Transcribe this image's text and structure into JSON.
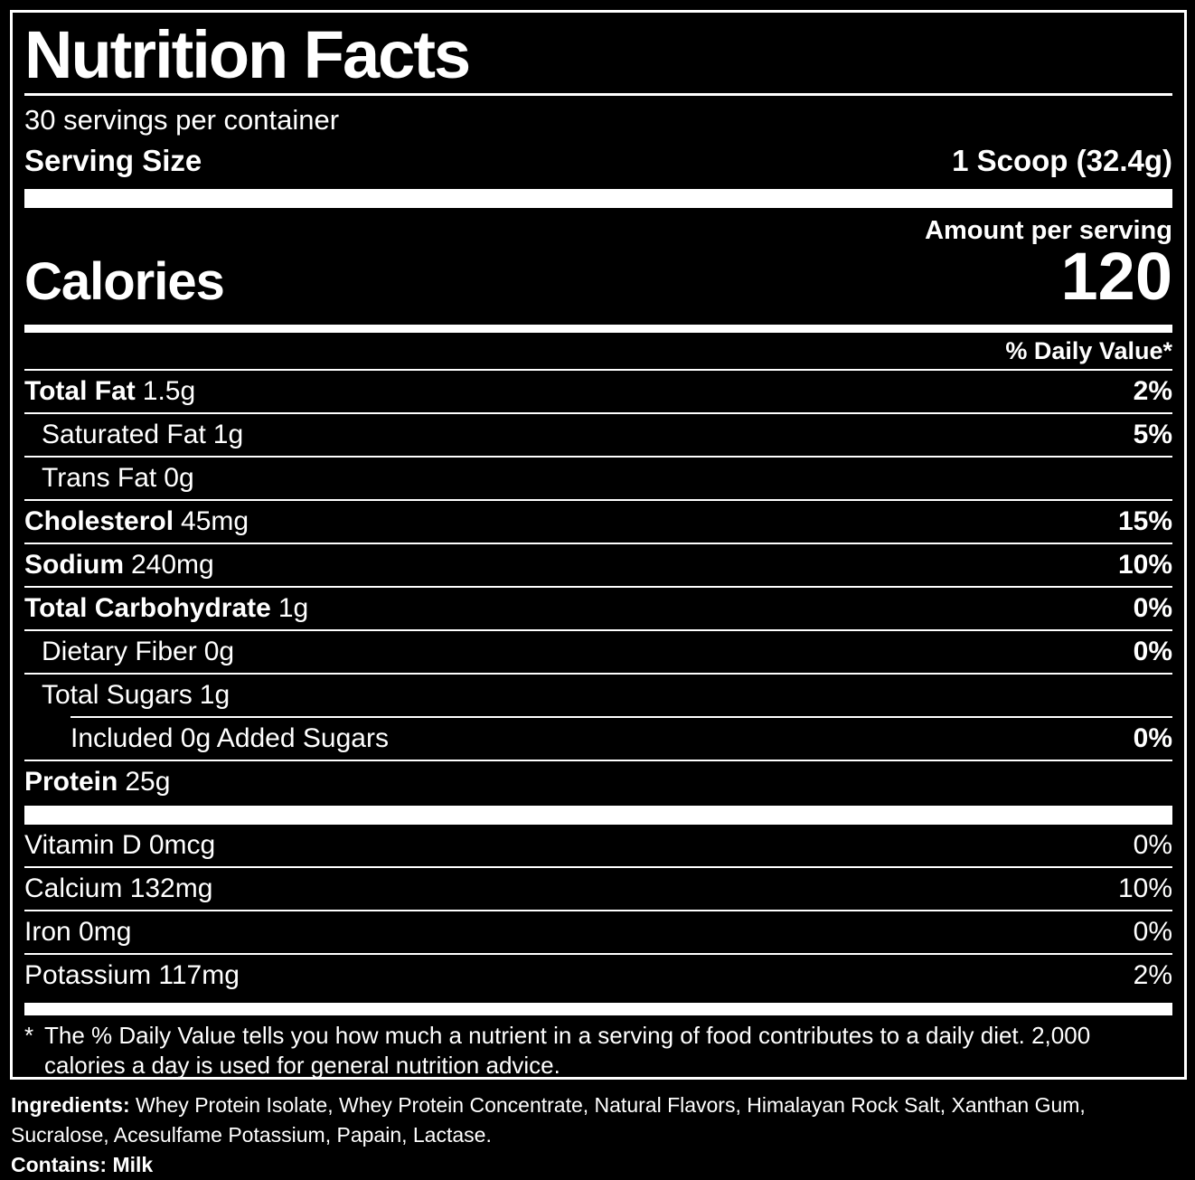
{
  "colors": {
    "background": "#000000",
    "text": "#ffffff"
  },
  "label": {
    "title": "Nutrition Facts",
    "servings_per_container": "30 servings per container",
    "serving_size_label": "Serving Size",
    "serving_size_value": "1 Scoop (32.4g)",
    "amount_per_serving": "Amount per serving",
    "calories_label": "Calories",
    "calories_value": "120",
    "daily_value_header": "% Daily Value*",
    "rows": [
      {
        "label": "Total Fat",
        "amount": "1.5g",
        "dv": "2%"
      },
      {
        "label": "Saturated Fat",
        "amount": "1g",
        "dv": "5%"
      },
      {
        "label": "Trans Fat",
        "amount": "0g",
        "dv": ""
      },
      {
        "label": "Cholesterol",
        "amount": "45mg",
        "dv": "15%"
      },
      {
        "label": "Sodium",
        "amount": "240mg",
        "dv": "10%"
      },
      {
        "label": "Total Carbohydrate",
        "amount": "1g",
        "dv": "0%"
      },
      {
        "label": "Dietary Fiber",
        "amount": "0g",
        "dv": "0%"
      },
      {
        "label": "Total Sugars",
        "amount": "1g",
        "dv": ""
      },
      {
        "label": "Included 0g Added Sugars",
        "amount": "",
        "dv": "0%"
      },
      {
        "label": "Protein",
        "amount": "25g",
        "dv": ""
      }
    ],
    "micronutrients": [
      {
        "label": "Vitamin D 0mcg",
        "dv": "0%"
      },
      {
        "label": "Calcium 132mg",
        "dv": "10%"
      },
      {
        "label": "Iron 0mg",
        "dv": "0%"
      },
      {
        "label": "Potassium 117mg",
        "dv": "2%"
      }
    ],
    "footnote_marker": "*",
    "footnote": "The % Daily Value tells you how much a nutrient in a serving of food contributes to a daily diet. 2,000 calories a day is used for general nutrition advice.",
    "ingredients_label": "Ingredients:",
    "ingredients": "Whey Protein Isolate, Whey Protein Concentrate, Natural Flavors, Himalayan Rock Salt, Xanthan Gum, Sucralose, Acesulfame Potassium, Papain, Lactase.",
    "contains": "Contains: Milk"
  }
}
